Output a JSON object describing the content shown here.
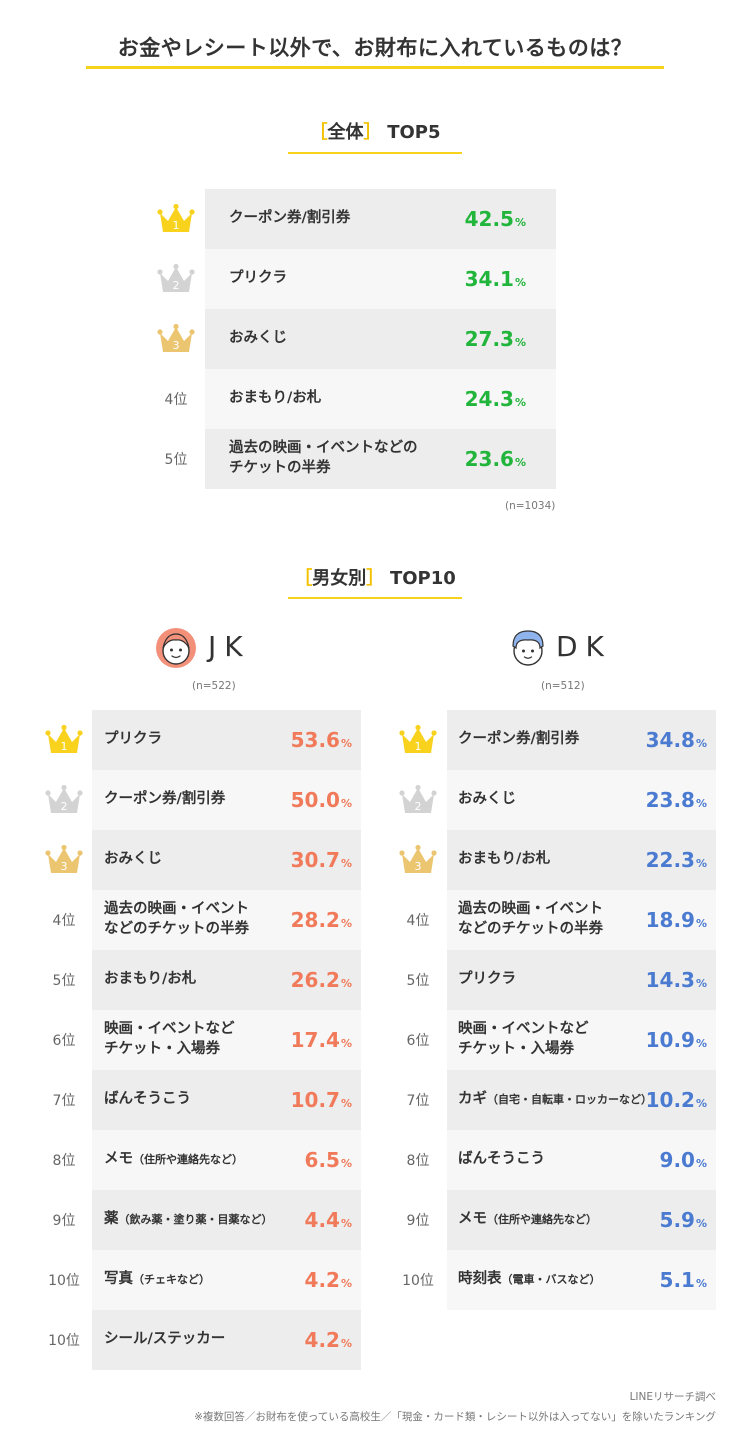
{
  "title": "お金やレシート以外で、お財布に入れているものは？",
  "overall": {
    "bracket_open": "［",
    "bracket_close": "］",
    "heading": "全体",
    "heading_suffix": "TOP5",
    "sample": "(n=1034)",
    "color": "#22b53c"
  },
  "gender": {
    "bracket_open": "［",
    "bracket_close": "］",
    "heading": "男女別",
    "heading_suffix": "TOP10"
  },
  "jk": {
    "label": "JK",
    "sample": "(n=522)",
    "color": "#f07a5a"
  },
  "dk": {
    "label": "DK",
    "sample": "(n=512)",
    "color": "#4b7bd1"
  },
  "rank_labels": {
    "r4": "4位",
    "r5": "5位",
    "r6": "6位",
    "r7": "7位",
    "r8": "8位",
    "r9": "9位",
    "r10": "10位"
  },
  "crown_colors": {
    "gold": "#f8d21c",
    "silver": "#d3d3d3",
    "bronze": "#ecc571"
  },
  "row_colors": {
    "odd": "#ededed",
    "even": "#f7f7f7"
  },
  "pct_unit": "%",
  "footer": {
    "source": "LINEリサーチ調べ",
    "note": "※複数回答／お財布を使っている高校生／「現金・カード類・レシート以外は入ってない」を除いたランキング"
  },
  "chart_data": [
    {
      "type": "table",
      "title": "全体 TOP5",
      "categories": [
        "クーポン券/割引券",
        "プリクラ",
        "おみくじ",
        "おまもり/お札",
        "過去の映画・イベントなどのチケットの半券"
      ],
      "values": [
        42.5,
        34.1,
        27.3,
        24.3,
        23.6
      ],
      "unit": "%",
      "rows": [
        {
          "rank": "1",
          "lines": [
            "クーポン券/割引券"
          ],
          "value": "42.5"
        },
        {
          "rank": "2",
          "lines": [
            "プリクラ"
          ],
          "value": "34.1"
        },
        {
          "rank": "3",
          "lines": [
            "おみくじ"
          ],
          "value": "27.3"
        },
        {
          "rank": "4位",
          "lines": [
            "おまもり/お札"
          ],
          "value": "24.3"
        },
        {
          "rank": "5位",
          "lines": [
            "過去の映画・イベントなどの",
            "チケットの半券"
          ],
          "value": "23.6"
        }
      ]
    },
    {
      "type": "table",
      "title": "JK",
      "categories": [
        "プリクラ",
        "クーポン券/割引券",
        "おみくじ",
        "過去の映画・イベントなどのチケットの半券",
        "おまもり/お札",
        "映画・イベントなどチケット・入場券",
        "ばんそうこう",
        "メモ（住所や連絡先など）",
        "薬（飲み薬・塗り薬・目薬など）",
        "写真（チェキなど）",
        "シール/ステッカー"
      ],
      "values": [
        53.6,
        50.0,
        30.7,
        28.2,
        26.2,
        17.4,
        10.7,
        6.5,
        4.4,
        4.2,
        4.2
      ],
      "unit": "%",
      "rows": [
        {
          "rank": "1",
          "lines": [
            "プリクラ"
          ],
          "value": "53.6"
        },
        {
          "rank": "2",
          "lines": [
            "クーポン券/割引券"
          ],
          "value": "50.0"
        },
        {
          "rank": "3",
          "lines": [
            "おみくじ"
          ],
          "value": "30.7"
        },
        {
          "rank": "4位",
          "lines": [
            "過去の映画・イベント",
            "などのチケットの半券"
          ],
          "value": "28.2"
        },
        {
          "rank": "5位",
          "lines": [
            "おまもり/お札"
          ],
          "value": "26.2"
        },
        {
          "rank": "6位",
          "lines": [
            "映画・イベントなど",
            "チケット・入場券"
          ],
          "value": "17.4"
        },
        {
          "rank": "7位",
          "lines": [
            "ばんそうこう"
          ],
          "value": "10.7"
        },
        {
          "rank": "8位",
          "main": "メモ",
          "sub": "（住所や連絡先など）",
          "value": "6.5"
        },
        {
          "rank": "9位",
          "main": "薬",
          "sub": "（飲み薬・塗り薬・目薬など）",
          "value": "4.4"
        },
        {
          "rank": "10位",
          "main": "写真",
          "sub": "（チェキなど）",
          "value": "4.2"
        },
        {
          "rank": "10位",
          "lines": [
            "シール/ステッカー"
          ],
          "value": "4.2"
        }
      ]
    },
    {
      "type": "table",
      "title": "DK",
      "categories": [
        "クーポン券/割引券",
        "おみくじ",
        "おまもり/お札",
        "過去の映画・イベントなどのチケットの半券",
        "プリクラ",
        "映画・イベントなどチケット・入場券",
        "カギ（自宅・自転車・ロッカーなど）",
        "ばんそうこう",
        "メモ（住所や連絡先など）",
        "時刻表（電車・バスなど）"
      ],
      "values": [
        34.8,
        23.8,
        22.3,
        18.9,
        14.3,
        10.9,
        10.2,
        9.0,
        5.9,
        5.1
      ],
      "unit": "%",
      "rows": [
        {
          "rank": "1",
          "lines": [
            "クーポン券/割引券"
          ],
          "value": "34.8"
        },
        {
          "rank": "2",
          "lines": [
            "おみくじ"
          ],
          "value": "23.8"
        },
        {
          "rank": "3",
          "lines": [
            "おまもり/お札"
          ],
          "value": "22.3"
        },
        {
          "rank": "4位",
          "lines": [
            "過去の映画・イベント",
            "などのチケットの半券"
          ],
          "value": "18.9"
        },
        {
          "rank": "5位",
          "lines": [
            "プリクラ"
          ],
          "value": "14.3"
        },
        {
          "rank": "6位",
          "lines": [
            "映画・イベントなど",
            "チケット・入場券"
          ],
          "value": "10.9"
        },
        {
          "rank": "7位",
          "main": "カギ",
          "sub": "（自宅・自転車・ロッカーなど）",
          "value": "10.2"
        },
        {
          "rank": "8位",
          "lines": [
            "ばんそうこう"
          ],
          "value": "9.0"
        },
        {
          "rank": "9位",
          "main": "メモ",
          "sub": "（住所や連絡先など）",
          "value": "5.9"
        },
        {
          "rank": "10位",
          "main": "時刻表",
          "sub": "（電車・バスなど）",
          "value": "5.1"
        }
      ]
    }
  ]
}
